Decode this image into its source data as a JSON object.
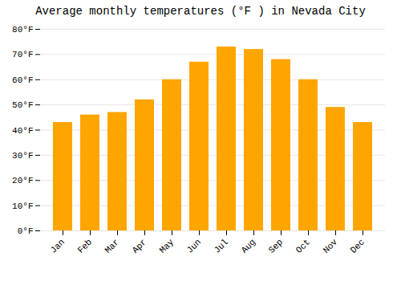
{
  "chart_data": {
    "type": "bar",
    "title": "Average monthly temperatures (°F ) in Nevada City",
    "categories": [
      "Jan",
      "Feb",
      "Mar",
      "Apr",
      "May",
      "Jun",
      "Jul",
      "Aug",
      "Sep",
      "Oct",
      "Nov",
      "Dec"
    ],
    "values": [
      43,
      46,
      47,
      52,
      60,
      67,
      73,
      72,
      68,
      60,
      49,
      43
    ],
    "color": "#FFA500",
    "ylim": [
      0,
      80
    ],
    "yticks": [
      {
        "value": 0,
        "label": "0°F"
      },
      {
        "value": 10,
        "label": "10°F"
      },
      {
        "value": 20,
        "label": "20°F"
      },
      {
        "value": 30,
        "label": "30°F"
      },
      {
        "value": 40,
        "label": "40°F"
      },
      {
        "value": 50,
        "label": "50°F"
      },
      {
        "value": 60,
        "label": "60°F"
      },
      {
        "value": 70,
        "label": "70°F"
      },
      {
        "value": 80,
        "label": "80°F"
      }
    ],
    "grid": true
  }
}
